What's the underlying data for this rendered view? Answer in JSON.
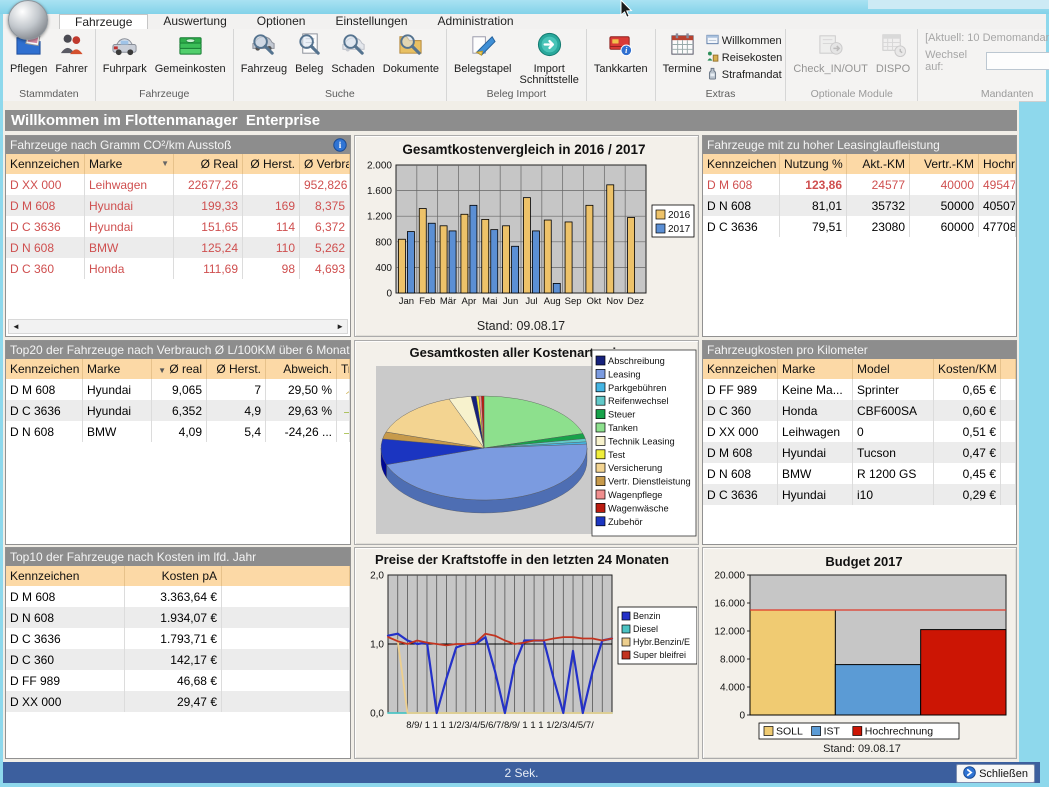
{
  "ribbon": {
    "tabs": [
      {
        "label": "Fahrzeuge",
        "active": true
      },
      {
        "label": "Auswertung"
      },
      {
        "label": "Optionen"
      },
      {
        "label": "Einstellungen"
      },
      {
        "label": "Administration"
      }
    ],
    "groups": [
      {
        "label": "Stammdaten",
        "buttons": [
          {
            "label": "Pflegen",
            "icon": "care-folder-icon"
          },
          {
            "label": "Fahrer",
            "icon": "drivers-icon"
          }
        ]
      },
      {
        "label": "Fahrzeuge",
        "buttons": [
          {
            "label": "Fuhrpark",
            "icon": "fleet-icon"
          },
          {
            "label": "Gemeinkosten",
            "icon": "overheads-icon"
          }
        ]
      },
      {
        "label": "Suche",
        "buttons": [
          {
            "label": "Fahrzeug",
            "icon": "search-vehicle-icon"
          },
          {
            "label": "Beleg",
            "icon": "search-receipt-icon"
          },
          {
            "label": "Schaden",
            "icon": "search-damage-icon"
          },
          {
            "label": "Dokumente",
            "icon": "search-documents-icon"
          }
        ]
      },
      {
        "label": "Beleg Import",
        "buttons": [
          {
            "label": "Belegstapel",
            "icon": "receipt-stack-icon"
          },
          {
            "label": "Import Schnittstelle",
            "icon": "import-interface-icon"
          }
        ]
      },
      {
        "label": "",
        "buttons": [
          {
            "label": "Tankkarten",
            "icon": "fuel-cards-icon"
          }
        ]
      },
      {
        "label": "Extras",
        "buttons": [
          {
            "label": "Termine",
            "icon": "calendar-icon"
          }
        ],
        "small_buttons": [
          {
            "label": "Willkommen",
            "icon": "welcome-icon"
          },
          {
            "label": "Reisekosten",
            "icon": "travel-costs-icon"
          },
          {
            "label": "Strafmandat",
            "icon": "penalty-icon"
          }
        ]
      },
      {
        "label": "Optionale Module",
        "disabled": true,
        "buttons": [
          {
            "label": "Check_IN/OUT",
            "icon": "check-in-out-icon"
          },
          {
            "label": "DISPO",
            "icon": "dispo-icon"
          }
        ]
      },
      {
        "label": "Mandanten",
        "disabled": true,
        "text_line": "[Aktuell: 10 Demomandant]",
        "select_label": "Wechsel auf:",
        "select_value": ""
      }
    ]
  },
  "welcome_banner": "Willkommen im Flottenmanager  Enterprise",
  "panels": {
    "co2": {
      "title": "Fahrzeuge nach Gramm CO²/km Ausstoß",
      "columns": [
        "Kennzeichen",
        "Marke",
        "Ø Real",
        "Ø Herst.",
        "Ø Verbrauch"
      ],
      "rows": [
        [
          "D XX 000",
          "Leihwagen",
          "22677,26",
          "",
          "952,826"
        ],
        [
          "D M 608",
          "Hyundai",
          "199,33",
          "169",
          "8,375"
        ],
        [
          "D C 3636",
          "Hyundai",
          "151,65",
          "114",
          "6,372"
        ],
        [
          "D N 608",
          "BMW",
          "125,24",
          "110",
          "5,262"
        ],
        [
          "D C 360",
          "Honda",
          "111,69",
          "98",
          "4,693"
        ]
      ]
    },
    "leasing": {
      "title": "Fahrzeuge mit zu hoher Leasinglaufleistung",
      "columns": [
        "Kennzeichen",
        "Nutzung %",
        "Akt.-KM",
        "Vertr.-KM",
        "Hochrechn."
      ],
      "rows": [
        [
          "D M 608",
          "123,86",
          "24577",
          "40000",
          "49547"
        ],
        [
          "D N 608",
          "81,01",
          "35732",
          "50000",
          "40507"
        ],
        [
          "D C 3636",
          "79,51",
          "23080",
          "60000",
          "47708"
        ]
      ]
    },
    "verbrauch": {
      "title": "Top20 der Fahrzeuge nach Verbrauch Ø L/100KM über 6 Monate",
      "columns": [
        "Kennzeichen",
        "Marke",
        "Ø real",
        "Ø Herst.",
        "Abweich.",
        "Trend"
      ],
      "rows": [
        [
          "D M 608",
          "Hyundai",
          "9,065",
          "7",
          "29,50 %",
          "up"
        ],
        [
          "D C 3636",
          "Hyundai",
          "6,352",
          "4,9",
          "29,63 %",
          "flat"
        ],
        [
          "D N 608",
          "BMW",
          "4,09",
          "5,4",
          "-24,26 ...",
          "flat"
        ]
      ]
    },
    "kosten_km": {
      "title": "Fahrzeugkosten pro Kilometer",
      "columns": [
        "Kennzeichen",
        "Marke",
        "Model",
        "Kosten/KM"
      ],
      "rows": [
        [
          "D FF 989",
          "Keine Ma...",
          "Sprinter",
          "0,65 €"
        ],
        [
          "D C 360",
          "Honda",
          "CBF600SA",
          "0,60 €"
        ],
        [
          "D XX 000",
          "Leihwagen",
          "0",
          "0,51 €"
        ],
        [
          "D M 608",
          "Hyundai",
          "Tucson",
          "0,47 €"
        ],
        [
          "D N 608",
          "BMW",
          "R 1200 GS",
          "0,45 €"
        ],
        [
          "D C 3636",
          "Hyundai",
          "i10",
          "0,29 €"
        ]
      ]
    },
    "top10_kosten": {
      "title": "Top10 der Fahrzeuge nach Kosten im lfd. Jahr",
      "columns": [
        "Kennzeichen",
        "Kosten pA"
      ],
      "rows": [
        [
          "D M 608",
          "3.363,64 €"
        ],
        [
          "D N 608",
          "1.934,07 €"
        ],
        [
          "D C 3636",
          "1.793,71 €"
        ],
        [
          "D C 360",
          "142,17 €"
        ],
        [
          "D FF 989",
          "46,68 €"
        ],
        [
          "D XX 000",
          "29,47 €"
        ]
      ]
    }
  },
  "chart_data": [
    {
      "id": "cost_compare",
      "type": "bar",
      "title": "Gesamtkostenvergleich in 2016 / 2017",
      "categories": [
        "Jan",
        "Feb",
        "Mär",
        "Apr",
        "Mai",
        "Jun",
        "Jul",
        "Aug",
        "Sep",
        "Okt",
        "Nov",
        "Dez"
      ],
      "series": [
        {
          "name": "2016",
          "color": "#edc269",
          "values": [
            840,
            1320,
            1050,
            1230,
            1150,
            1050,
            1490,
            1140,
            1110,
            1370,
            1690,
            1180
          ]
        },
        {
          "name": "2017",
          "color": "#5b8fd4",
          "values": [
            960,
            1090,
            970,
            1370,
            990,
            730,
            970,
            150,
            0,
            0,
            0,
            0
          ]
        }
      ],
      "ylim": [
        0,
        2000
      ],
      "ytick_step": 400,
      "legend_position": "right",
      "footer": "Stand: 09.08.17"
    },
    {
      "id": "pie_costs",
      "type": "pie",
      "title": "Gesamtkosten aller Kostenarten im a",
      "legend": [
        "Abschreibung",
        "Leasing",
        "Parkgebühren",
        "Reifenwechsel",
        "Steuer",
        "Tanken",
        "Technik Leasing",
        "Test",
        "Versicherung",
        "Vertr. Dienstleistung",
        "Wagenpflege",
        "Wagenwäsche",
        "Zubehör"
      ],
      "colors": {
        "Abschreibung": "#16217c",
        "Leasing": "#7b9be0",
        "Parkgebühren": "#45b5e3",
        "Reifenwechsel": "#62c9c9",
        "Steuer": "#17a24a",
        "Tanken": "#8de08d",
        "Technik Leasing": "#f7f2cd",
        "Test": "#f0ee3a",
        "Versicherung": "#f3d491",
        "Vertr. Dienstleistung": "#c79a4b",
        "Wagenpflege": "#f08e8e",
        "Wagenwäsche": "#bb1c10",
        "Zubehör": "#1b35c1"
      },
      "slices": [
        {
          "name": "Tanken",
          "pct": 20.5
        },
        {
          "name": "Steuer",
          "pct": 1.6
        },
        {
          "name": "Reifenwechsel",
          "pct": 1.0
        },
        {
          "name": "Parkgebühren",
          "pct": 0.7
        },
        {
          "name": "Leasing",
          "pct": 46.0
        },
        {
          "name": "Zubehör",
          "pct": 8.0
        },
        {
          "name": "Vertr. Dienstleistung",
          "pct": 2.2
        },
        {
          "name": "Versicherung",
          "pct": 14.5
        },
        {
          "name": "Technik Leasing",
          "pct": 3.5
        },
        {
          "name": "Abschreibung",
          "pct": 0.8
        },
        {
          "name": "Test",
          "pct": 0.4
        },
        {
          "name": "Wagenpflege",
          "pct": 0.4
        },
        {
          "name": "Wagenwäsche",
          "pct": 0.4
        }
      ],
      "legend_position": "right-overlay"
    },
    {
      "id": "fuel_prices",
      "type": "line",
      "title": "Preise der Kraftstoffe in den letzten 24 Monaten",
      "x_axis_label": "8/9/ 1 1 1 1/2/3/4/5/6/7/8/9/ 1 1 1 1/2/3/4/5/7/",
      "ylim": [
        0,
        2
      ],
      "yticks": [
        "0,0",
        "1,0",
        "2,0"
      ],
      "series": [
        {
          "name": "Benzin",
          "color": "#2431c8",
          "values": [
            1.12,
            1.15,
            1.05,
            1.0,
            1.02,
            0.0,
            0.5,
            0.95,
            1.0,
            1.0,
            1.1,
            0.6,
            0.0,
            0.7,
            1.05,
            1.05,
            1.05,
            0.5,
            0.0,
            0.9,
            0.0,
            0.6,
            1.05,
            1.08
          ]
        },
        {
          "name": "Diesel",
          "color": "#4cc3c3",
          "values": [
            0,
            0,
            0,
            0,
            0,
            0,
            0,
            0,
            0,
            0,
            0,
            0,
            0,
            0,
            0,
            0,
            0,
            0,
            0,
            0,
            0,
            0,
            0,
            0
          ]
        },
        {
          "name": "Hybr.Benzin/E",
          "color": "#edcf8e",
          "values": [
            1.1,
            1.05,
            0,
            0,
            0,
            0,
            0,
            0,
            0,
            0,
            0,
            0,
            0,
            0,
            0,
            0,
            0,
            0,
            0,
            0,
            0,
            0,
            0,
            0
          ]
        },
        {
          "name": "Super bleifrei",
          "color": "#c23420",
          "values": [
            1.1,
            1.04,
            1.0,
            1.05,
            1.02,
            1.0,
            0.98,
            1.0,
            1.0,
            1.02,
            1.15,
            1.12,
            1.05,
            1.0,
            1.02,
            1.05,
            1.05,
            1.08,
            1.1,
            1.1,
            1.08,
            1.08,
            1.05,
            1.08
          ]
        }
      ],
      "legend_position": "right"
    },
    {
      "id": "budget",
      "type": "bar",
      "title": "Budget 2017",
      "bars": [
        {
          "name": "SOLL",
          "color": "#f0cb72",
          "value": 15000
        },
        {
          "name": "IST",
          "color": "#5b9bd5",
          "value": 7200
        },
        {
          "name": "Hochrechnung",
          "color": "#cc1504",
          "value": 12200
        }
      ],
      "ylim": [
        0,
        20000
      ],
      "ytick_step": 4000,
      "ref_line": 15000,
      "legend_position": "bottom",
      "footer": "Stand: 09.08.17"
    }
  ],
  "statusbar": {
    "status": "2 Sek.",
    "close_label": "Schließen"
  }
}
